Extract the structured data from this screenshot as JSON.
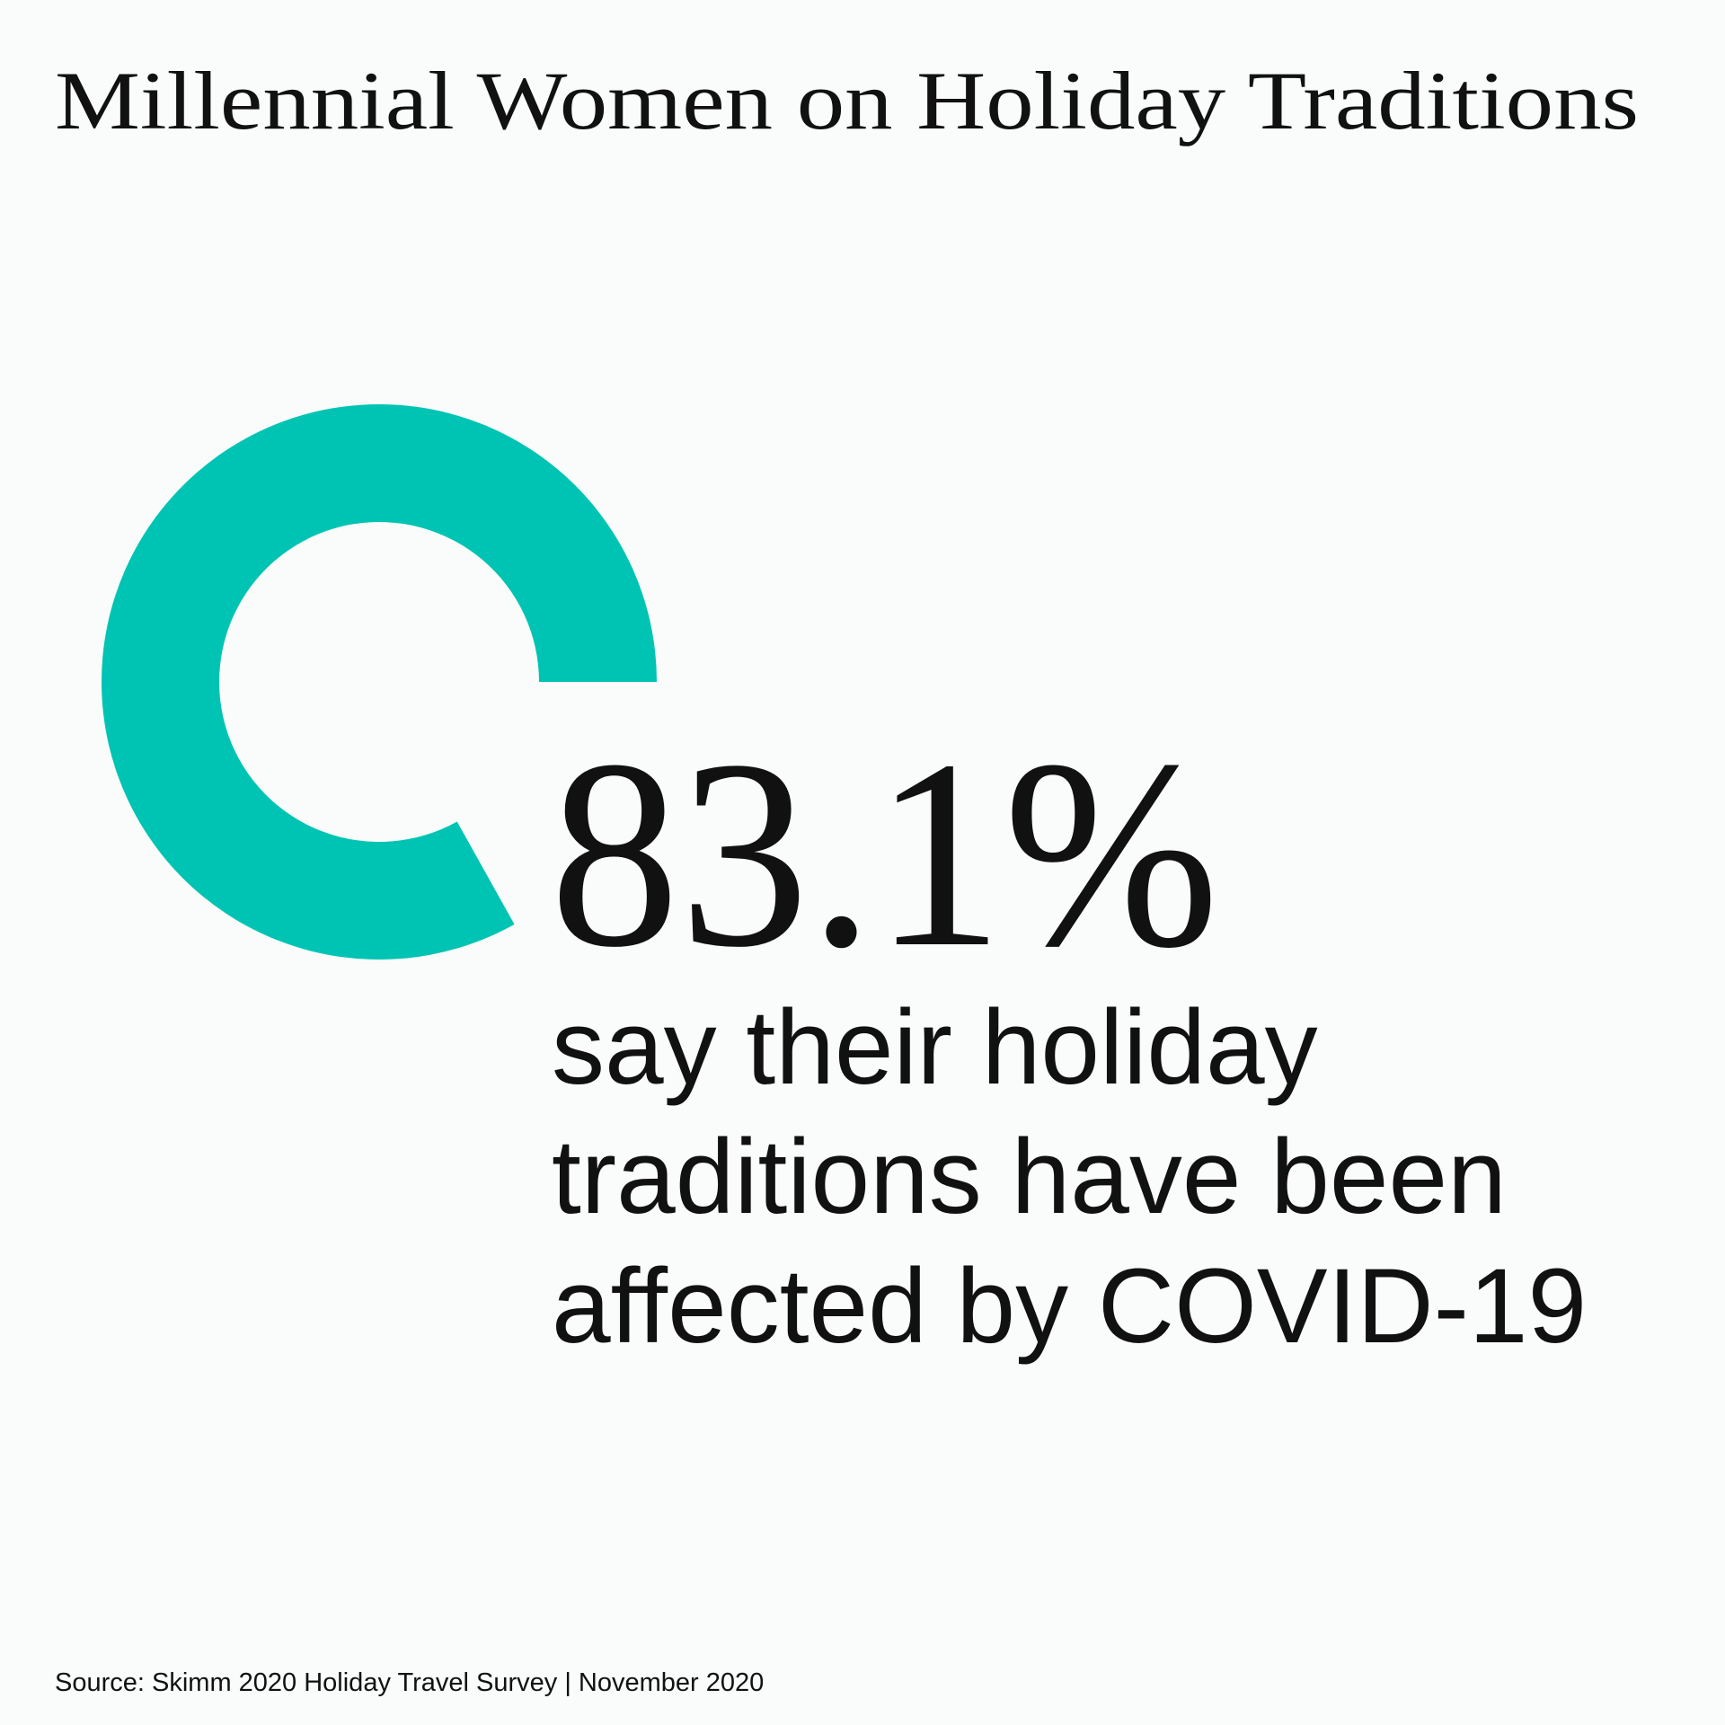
{
  "chart_data": {
    "type": "donut",
    "title": "Millennial Women on Holiday Traditions",
    "values": [
      83.1
    ],
    "value_labels": [
      "83.1%"
    ],
    "color": "#00c4b3",
    "caption": [
      "say their holiday",
      "traditions have been",
      "affected by COVID-19"
    ],
    "source": "Source: Skimm 2020 Holiday Travel Survey | November 2020"
  }
}
